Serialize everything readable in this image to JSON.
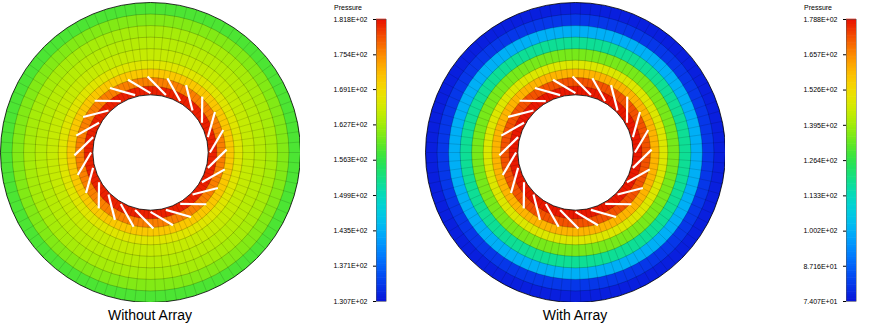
{
  "chart_data": [
    {
      "type": "contour",
      "title": "Without Array",
      "radii": [
        1.0,
        1.15,
        1.3,
        1.45,
        1.6,
        1.8,
        2.0,
        2.2,
        2.4,
        2.6
      ],
      "pressure": [
        181,
        176,
        171,
        167,
        165,
        164,
        163,
        161,
        158
      ],
      "colorbar": {
        "label": "Pressure",
        "range": [
          130.7,
          181.8
        ],
        "ticks": [
          {
            "value": 181.8,
            "label": "1.818E+02"
          },
          {
            "value": 175.4,
            "label": "1.754E+02"
          },
          {
            "value": 169.1,
            "label": "1.691E+02"
          },
          {
            "value": 162.7,
            "label": "1.627E+02"
          },
          {
            "value": 156.3,
            "label": "1.563E+02"
          },
          {
            "value": 149.9,
            "label": "1.499E+02"
          },
          {
            "value": 143.5,
            "label": "1.435E+02"
          },
          {
            "value": 137.1,
            "label": "1.371E+02"
          },
          {
            "value": 130.7,
            "label": "1.307E+02"
          }
        ]
      }
    },
    {
      "type": "contour",
      "title": "With Array",
      "radii": [
        1.0,
        1.15,
        1.3,
        1.45,
        1.6,
        1.8,
        2.0,
        2.2,
        2.4,
        2.6
      ],
      "pressure": [
        178,
        172,
        160,
        148,
        135,
        118,
        100,
        80,
        76
      ],
      "colorbar": {
        "label": "Pressure",
        "range": [
          74.07,
          178.8
        ],
        "ticks": [
          {
            "value": 178.8,
            "label": "1.788E+02"
          },
          {
            "value": 165.7,
            "label": "1.657E+02"
          },
          {
            "value": 152.6,
            "label": "1.526E+02"
          },
          {
            "value": 139.5,
            "label": "1.395E+02"
          },
          {
            "value": 126.4,
            "label": "1.264E+02"
          },
          {
            "value": 113.3,
            "label": "1.133E+02"
          },
          {
            "value": 100.2,
            "label": "1.002E+02"
          },
          {
            "value": 87.16,
            "label": "8.716E+01"
          },
          {
            "value": 74.07,
            "label": "7.407E+01"
          }
        ]
      }
    }
  ]
}
